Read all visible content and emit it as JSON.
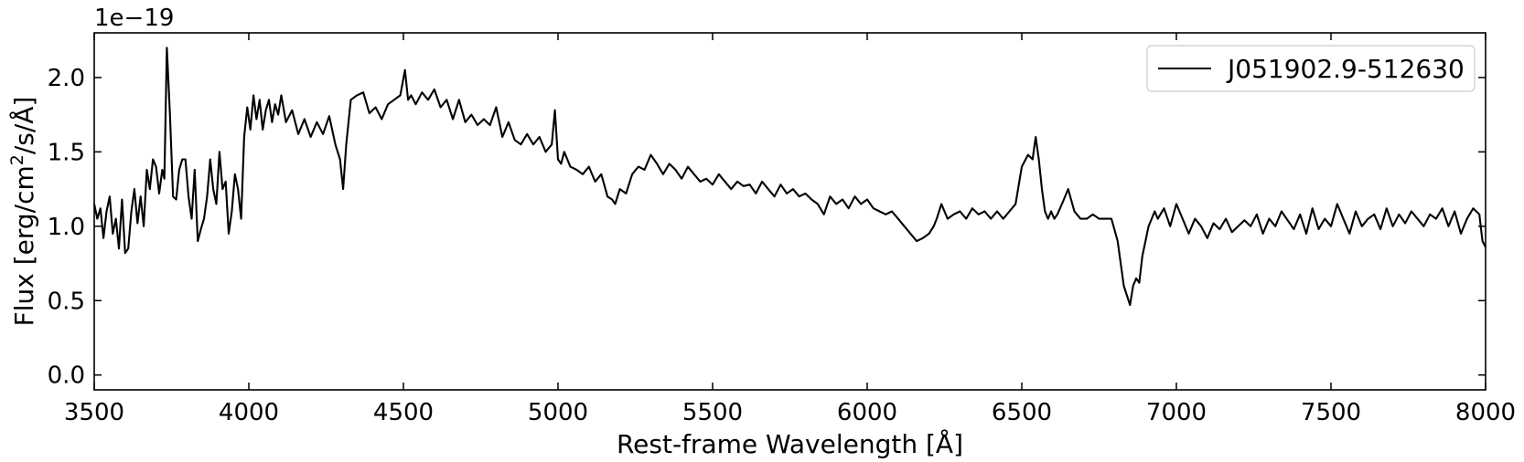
{
  "chart_data": {
    "type": "line",
    "title": "",
    "xlabel": "Rest-frame Wavelength [Å]",
    "ylabel_prefix": "Flux [erg/cm",
    "ylabel_sup": "2",
    "ylabel_suffix": "/s/Å]",
    "y_offset_text": "1e−19",
    "xlim": [
      3500,
      8000
    ],
    "ylim": [
      -0.1,
      2.3
    ],
    "xticks": [
      3500,
      4000,
      4500,
      5000,
      5500,
      6000,
      6500,
      7000,
      7500,
      8000
    ],
    "xtick_labels": [
      "3500",
      "4000",
      "4500",
      "5000",
      "5500",
      "6000",
      "6500",
      "7000",
      "7500",
      "8000"
    ],
    "yticks": [
      0.0,
      0.5,
      1.0,
      1.5,
      2.0
    ],
    "ytick_labels": [
      "0.0",
      "0.5",
      "1.0",
      "1.5",
      "2.0"
    ],
    "grid": false,
    "legend_placement": "top-right",
    "line_color": "#000000",
    "series": [
      {
        "name": "J051902.9-512630",
        "x": [
          3500,
          3510,
          3520,
          3530,
          3540,
          3550,
          3560,
          3570,
          3580,
          3590,
          3600,
          3610,
          3620,
          3630,
          3640,
          3650,
          3660,
          3670,
          3680,
          3690,
          3700,
          3710,
          3720,
          3727,
          3735,
          3745,
          3755,
          3765,
          3775,
          3785,
          3795,
          3805,
          3815,
          3825,
          3835,
          3845,
          3855,
          3865,
          3875,
          3885,
          3895,
          3905,
          3915,
          3925,
          3935,
          3945,
          3955,
          3965,
          3975,
          3985,
          3995,
          4005,
          4015,
          4025,
          4035,
          4045,
          4055,
          4065,
          4075,
          4085,
          4095,
          4105,
          4120,
          4140,
          4160,
          4180,
          4200,
          4220,
          4240,
          4260,
          4280,
          4295,
          4305,
          4315,
          4330,
          4350,
          4370,
          4390,
          4410,
          4430,
          4450,
          4470,
          4490,
          4505,
          4515,
          4525,
          4540,
          4560,
          4580,
          4600,
          4620,
          4640,
          4660,
          4680,
          4700,
          4720,
          4740,
          4760,
          4780,
          4800,
          4820,
          4840,
          4860,
          4880,
          4900,
          4920,
          4940,
          4960,
          4980,
          4990,
          5000,
          5010,
          5020,
          5040,
          5060,
          5080,
          5100,
          5120,
          5140,
          5160,
          5175,
          5185,
          5200,
          5220,
          5240,
          5260,
          5280,
          5300,
          5320,
          5340,
          5360,
          5380,
          5400,
          5420,
          5440,
          5460,
          5480,
          5500,
          5520,
          5540,
          5560,
          5580,
          5600,
          5620,
          5640,
          5660,
          5680,
          5700,
          5720,
          5740,
          5760,
          5780,
          5800,
          5820,
          5840,
          5860,
          5880,
          5900,
          5920,
          5940,
          5960,
          5980,
          6000,
          6020,
          6040,
          6060,
          6080,
          6100,
          6120,
          6140,
          6160,
          6180,
          6200,
          6215,
          6225,
          6240,
          6260,
          6280,
          6300,
          6320,
          6340,
          6360,
          6380,
          6400,
          6420,
          6440,
          6460,
          6480,
          6500,
          6520,
          6535,
          6545,
          6555,
          6565,
          6575,
          6585,
          6595,
          6605,
          6615,
          6630,
          6650,
          6670,
          6690,
          6710,
          6730,
          6750,
          6770,
          6790,
          6810,
          6830,
          6850,
          6860,
          6870,
          6880,
          6890,
          6900,
          6910,
          6920,
          6930,
          6940,
          6960,
          6980,
          7000,
          7020,
          7040,
          7060,
          7080,
          7100,
          7120,
          7140,
          7160,
          7180,
          7200,
          7220,
          7240,
          7260,
          7280,
          7300,
          7320,
          7340,
          7360,
          7380,
          7400,
          7420,
          7440,
          7460,
          7480,
          7500,
          7520,
          7540,
          7560,
          7580,
          7600,
          7620,
          7640,
          7660,
          7680,
          7700,
          7720,
          7740,
          7760,
          7780,
          7800,
          7820,
          7840,
          7860,
          7880,
          7900,
          7920,
          7940,
          7960,
          7980,
          7990,
          8000
        ],
        "y": [
          1.15,
          1.05,
          1.12,
          0.92,
          1.1,
          1.2,
          0.95,
          1.05,
          0.85,
          1.18,
          0.82,
          0.85,
          1.1,
          1.25,
          1.02,
          1.2,
          1.0,
          1.38,
          1.25,
          1.45,
          1.4,
          1.22,
          1.38,
          1.32,
          2.2,
          1.75,
          1.2,
          1.18,
          1.38,
          1.45,
          1.45,
          1.2,
          1.05,
          1.38,
          0.9,
          0.98,
          1.05,
          1.2,
          1.45,
          1.25,
          1.15,
          1.5,
          1.25,
          1.3,
          0.95,
          1.1,
          1.35,
          1.25,
          1.05,
          1.6,
          1.8,
          1.65,
          1.88,
          1.72,
          1.85,
          1.65,
          1.78,
          1.85,
          1.7,
          1.82,
          1.75,
          1.88,
          1.7,
          1.78,
          1.62,
          1.72,
          1.6,
          1.7,
          1.62,
          1.74,
          1.55,
          1.45,
          1.25,
          1.55,
          1.85,
          1.88,
          1.9,
          1.76,
          1.8,
          1.72,
          1.82,
          1.85,
          1.88,
          2.05,
          1.85,
          1.88,
          1.82,
          1.9,
          1.85,
          1.92,
          1.8,
          1.85,
          1.72,
          1.85,
          1.7,
          1.75,
          1.68,
          1.72,
          1.68,
          1.8,
          1.6,
          1.7,
          1.58,
          1.55,
          1.62,
          1.55,
          1.6,
          1.5,
          1.55,
          1.78,
          1.45,
          1.42,
          1.5,
          1.4,
          1.38,
          1.35,
          1.4,
          1.3,
          1.35,
          1.2,
          1.18,
          1.15,
          1.25,
          1.22,
          1.35,
          1.4,
          1.38,
          1.48,
          1.42,
          1.35,
          1.42,
          1.38,
          1.32,
          1.4,
          1.35,
          1.3,
          1.32,
          1.28,
          1.35,
          1.3,
          1.25,
          1.3,
          1.27,
          1.28,
          1.22,
          1.3,
          1.25,
          1.2,
          1.28,
          1.22,
          1.25,
          1.2,
          1.22,
          1.18,
          1.15,
          1.08,
          1.2,
          1.15,
          1.18,
          1.12,
          1.2,
          1.15,
          1.18,
          1.12,
          1.1,
          1.08,
          1.1,
          1.05,
          1.0,
          0.95,
          0.9,
          0.92,
          0.95,
          1.0,
          1.05,
          1.15,
          1.05,
          1.08,
          1.1,
          1.05,
          1.12,
          1.08,
          1.1,
          1.05,
          1.1,
          1.05,
          1.1,
          1.15,
          1.4,
          1.48,
          1.45,
          1.6,
          1.45,
          1.25,
          1.1,
          1.05,
          1.1,
          1.05,
          1.08,
          1.15,
          1.25,
          1.1,
          1.05,
          1.05,
          1.08,
          1.05,
          1.05,
          1.05,
          0.9,
          0.6,
          0.47,
          0.6,
          0.65,
          0.62,
          0.8,
          0.9,
          1.0,
          1.05,
          1.1,
          1.05,
          1.12,
          1.0,
          1.15,
          1.05,
          0.95,
          1.05,
          1.0,
          0.92,
          1.02,
          0.98,
          1.05,
          0.96,
          1.0,
          1.04,
          1.0,
          1.08,
          0.95,
          1.05,
          1.0,
          1.1,
          1.04,
          0.98,
          1.08,
          0.95,
          1.12,
          0.98,
          1.05,
          1.0,
          1.15,
          1.05,
          0.95,
          1.1,
          1.0,
          1.05,
          1.08,
          0.98,
          1.12,
          1.0,
          1.08,
          1.02,
          1.1,
          1.05,
          1.0,
          1.08,
          1.05,
          1.12,
          1.0,
          1.1,
          0.95,
          1.05,
          1.12,
          1.08,
          0.9,
          0.86
        ]
      }
    ]
  }
}
